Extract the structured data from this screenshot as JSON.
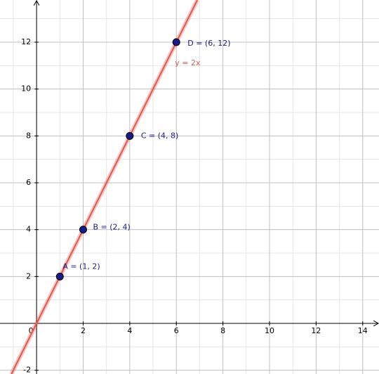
{
  "chart_data": {
    "type": "line",
    "xlim": [
      -1.57,
      14.7
    ],
    "ylim": [
      -2.16,
      13.8
    ],
    "xticks": [
      0,
      2,
      4,
      6,
      8,
      10,
      12,
      14
    ],
    "yticks": [
      -2,
      2,
      4,
      6,
      8,
      10,
      12
    ],
    "minor_xticks": [
      -1,
      1,
      3,
      5,
      7,
      9,
      11,
      13
    ],
    "minor_yticks": [
      -1,
      0,
      1,
      3,
      5,
      7,
      9,
      11,
      13
    ],
    "grid": true,
    "series": [
      {
        "name": "y = 2x",
        "color": "#e05a50",
        "x": [
          -1.08,
          6.9
        ],
        "values": [
          -2.16,
          13.8
        ]
      },
      {
        "type": "scatter",
        "color": "#1a1a8c",
        "x": [
          1,
          2,
          4,
          6
        ],
        "values": [
          2,
          4,
          8,
          12
        ],
        "labels": [
          "A = (1, 2)",
          "B = (2, 4)",
          "C = (4, 8)",
          "D = (6, 12)"
        ]
      }
    ]
  }
}
